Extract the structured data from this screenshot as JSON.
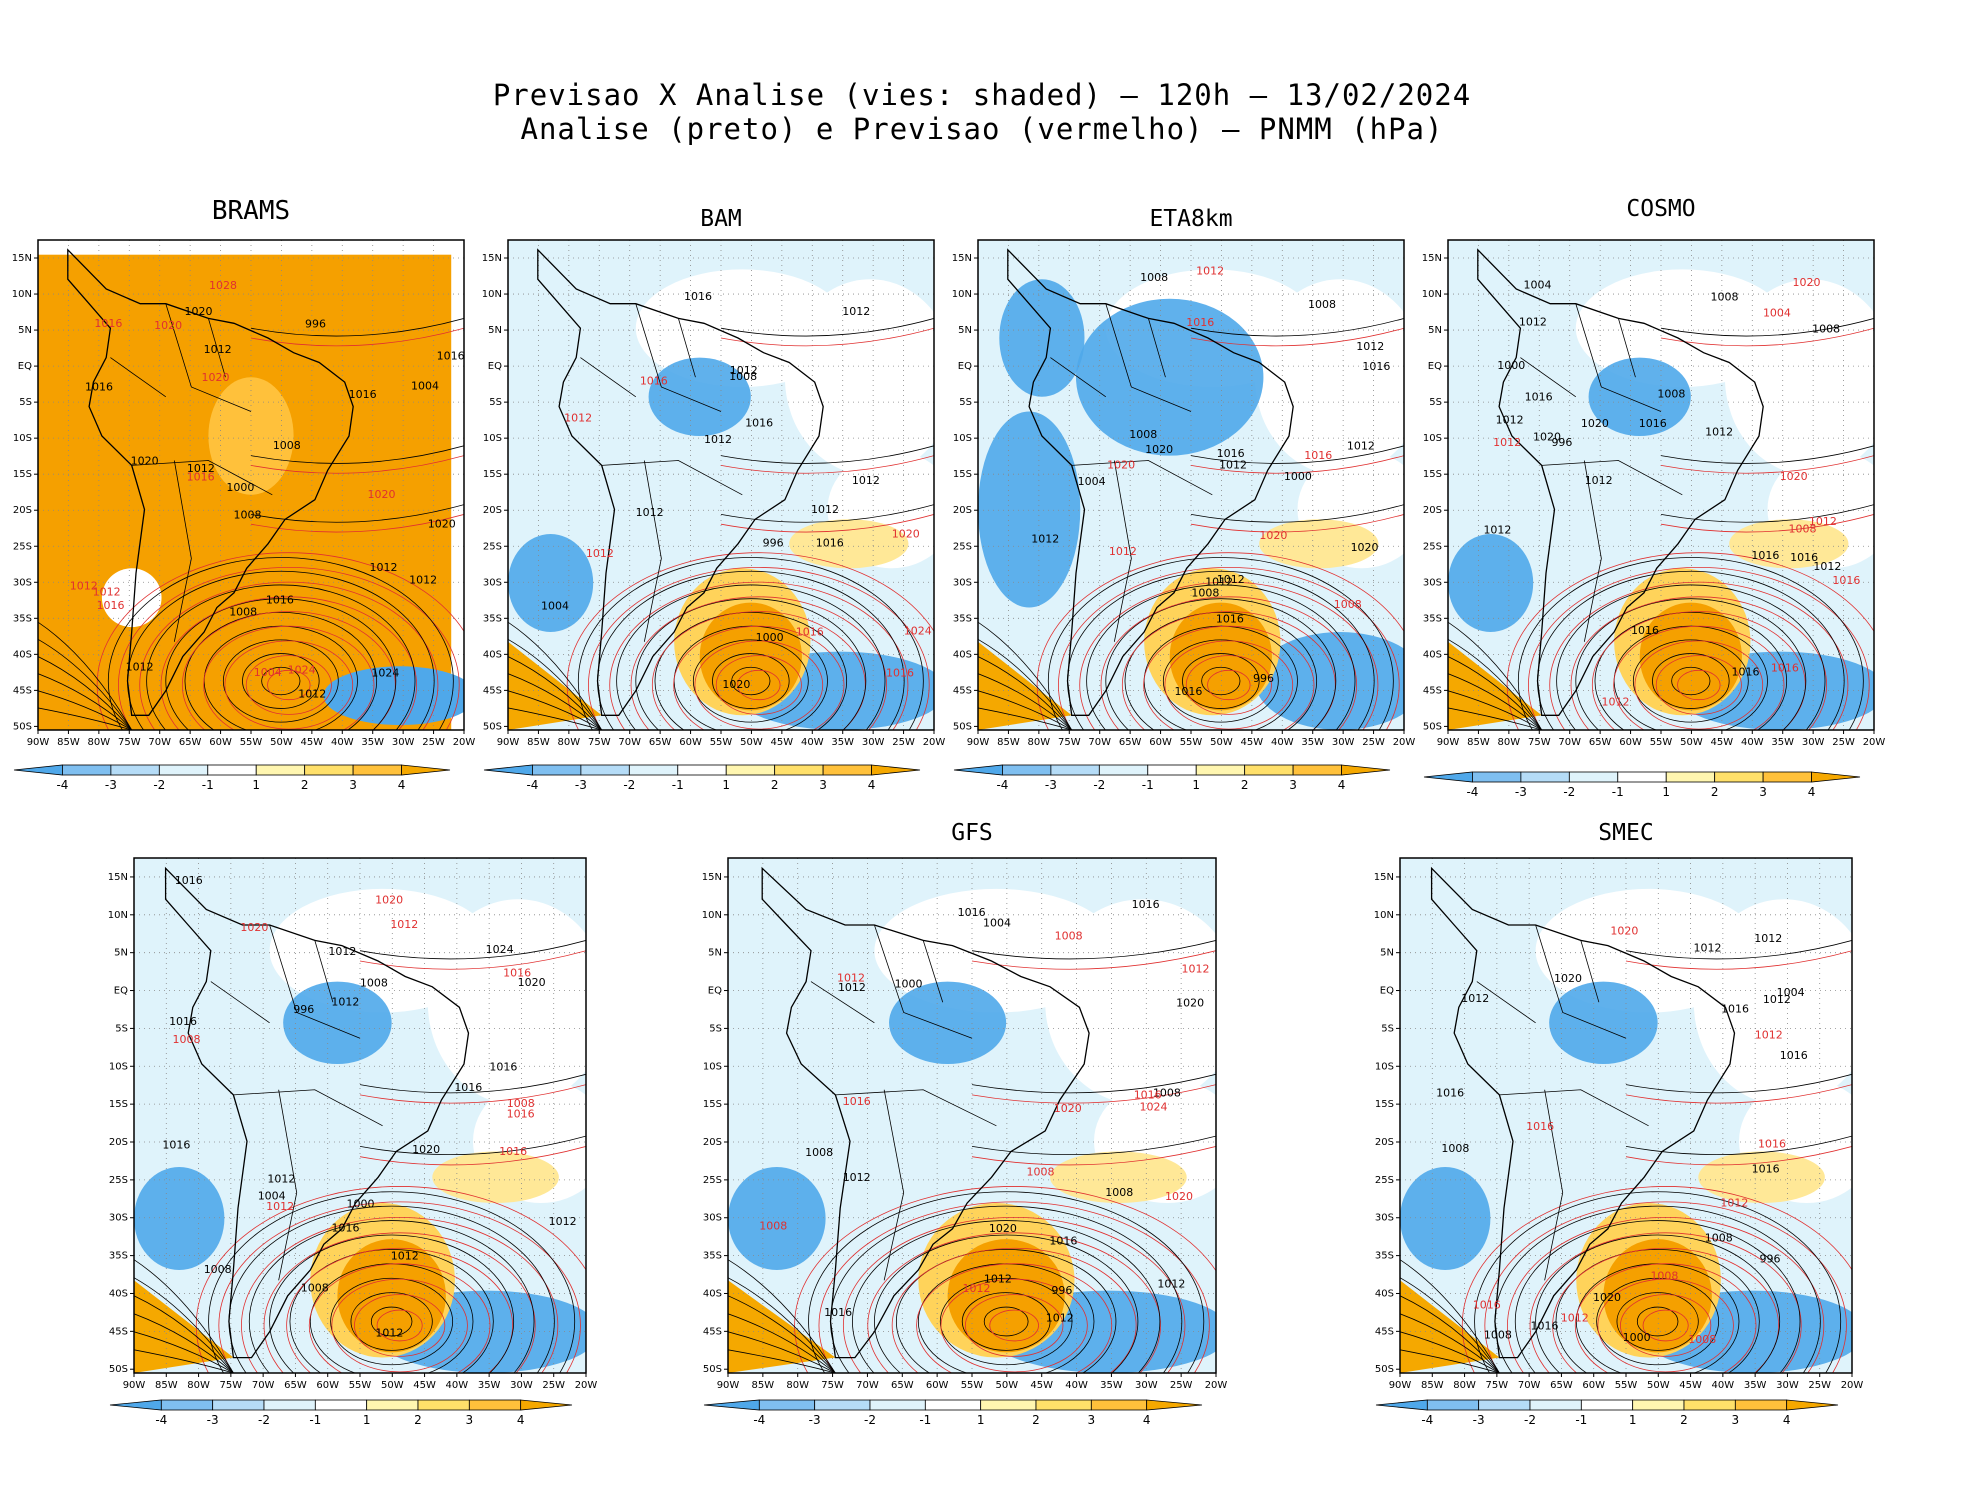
{
  "title": {
    "line1": "Previsao X Analise (vies: shaded) – 120h – 13/02/2024",
    "line2": "Analise (preto) e Previsao (vermelho) – PNMM (hPa)"
  },
  "lat_ticks": [
    "15N",
    "10N",
    "5N",
    "EQ",
    "5S",
    "10S",
    "15S",
    "20S",
    "25S",
    "30S",
    "35S",
    "40S",
    "45S",
    "50S"
  ],
  "lon_ticks": [
    "90W",
    "85W",
    "80W",
    "75W",
    "70W",
    "65W",
    "60W",
    "55W",
    "50W",
    "45W",
    "40W",
    "35W",
    "30W",
    "25W",
    "20W"
  ],
  "colorbar": {
    "labels": [
      "-4",
      "-3",
      "-2",
      "-1",
      "1",
      "2",
      "3",
      "4"
    ],
    "colors": [
      "#4fa8ea",
      "#7fbff0",
      "#b5dcf7",
      "#dff3fb",
      "#ffffff",
      "#fff6b0",
      "#ffe06a",
      "#ffc13b",
      "#f5a800"
    ]
  },
  "colors": {
    "analysis_contour": "#000000",
    "forecast_contour": "#e03030",
    "warm_bias": "#f5a000",
    "cold_bias": "#4fa8ea"
  },
  "panels": [
    {
      "name": "BRAMS",
      "analysis_labels": [
        "1012",
        "1016",
        "1008",
        "1012",
        "1008",
        "1012",
        "1012",
        "1012",
        "1016",
        "1020",
        "1024",
        "1020",
        "1016",
        "1012",
        "1008",
        "1004",
        "1000",
        "996",
        "1020",
        "1016"
      ],
      "forecast_labels": [
        "1016",
        "1020",
        "1012",
        "1016",
        "1012",
        "1024",
        "1020",
        "1028",
        "1016",
        "1020",
        "1004"
      ]
    },
    {
      "name": "BAM",
      "analysis_labels": [
        "1012",
        "1016",
        "1012",
        "1012",
        "1012",
        "1016",
        "1020",
        "1012",
        "1008",
        "1004",
        "1000",
        "996",
        "1016",
        "1012"
      ],
      "forecast_labels": [
        "1016",
        "1016",
        "1020",
        "1012",
        "1016",
        "1012",
        "1024"
      ]
    },
    {
      "name": "ETA8km",
      "analysis_labels": [
        "1012",
        "1008",
        "1008",
        "1012",
        "1012",
        "1012",
        "1016",
        "1012",
        "1016",
        "1020",
        "1012",
        "1008",
        "1004",
        "1000",
        "996",
        "1016",
        "1016",
        "1020",
        "1008"
      ],
      "forecast_labels": [
        "1008",
        "1016",
        "1012",
        "1016",
        "1020",
        "1012",
        "1020"
      ]
    },
    {
      "name": "COSMO",
      "analysis_labels": [
        "1016",
        "1012",
        "1008",
        "1012",
        "1012",
        "1016",
        "1012",
        "1016",
        "1012",
        "1020",
        "1016",
        "1008",
        "1004",
        "1000",
        "996",
        "1008",
        "1016",
        "1020",
        "1012",
        "1016"
      ],
      "forecast_labels": [
        "1012",
        "1012",
        "1016",
        "1020",
        "1016",
        "1012",
        "1008",
        "1004",
        "1020"
      ]
    },
    {
      "name": "",
      "analysis_labels": [
        "1016",
        "1012",
        "1016",
        "1008",
        "1012",
        "1012",
        "1012",
        "1016",
        "1008",
        "1012",
        "1016",
        "1020",
        "1016",
        "1012",
        "1008",
        "1004",
        "1000",
        "996",
        "1020",
        "1024",
        "1016"
      ],
      "forecast_labels": [
        "1016",
        "1008",
        "1012",
        "1016",
        "1020",
        "1012",
        "1008",
        "1020",
        "1016"
      ]
    },
    {
      "name": "GFS",
      "analysis_labels": [
        "1016",
        "1008",
        "1008",
        "1012",
        "1012",
        "1016",
        "1012",
        "1012",
        "1020",
        "1016",
        "1012",
        "1008",
        "1004",
        "1000",
        "996",
        "1020",
        "1016"
      ],
      "forecast_labels": [
        "1016",
        "1008",
        "1012",
        "1008",
        "1016",
        "1020",
        "1012",
        "1020",
        "1012",
        "1008",
        "1024"
      ]
    },
    {
      "name": "SMEC",
      "analysis_labels": [
        "1016",
        "1008",
        "1016",
        "1012",
        "1012",
        "1016",
        "1008",
        "1012",
        "1020",
        "1016",
        "1012",
        "1008",
        "1004",
        "1000",
        "996",
        "1020",
        "1016"
      ],
      "forecast_labels": [
        "1008",
        "1016",
        "1012",
        "1016",
        "1012",
        "1020",
        "1012",
        "1008",
        "1016"
      ]
    }
  ]
}
